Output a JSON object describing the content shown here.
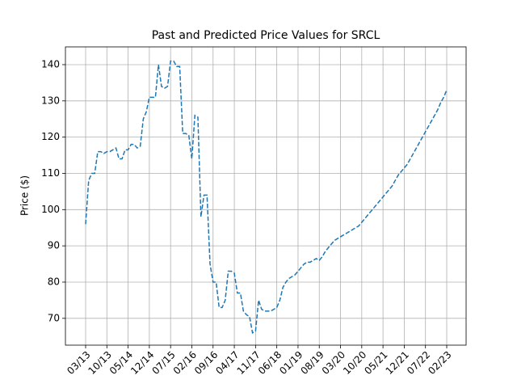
{
  "chart_data": {
    "type": "line",
    "title": "Past and Predicted Price Values for SRCL",
    "y_label": "Price ($)",
    "categories": [
      "03/13",
      null,
      null,
      null,
      null,
      null,
      null,
      "10/13",
      null,
      null,
      null,
      null,
      null,
      null,
      "05/14",
      null,
      null,
      null,
      null,
      null,
      null,
      "12/14",
      null,
      null,
      null,
      null,
      null,
      null,
      "07/15",
      null,
      null,
      null,
      null,
      null,
      null,
      "02/16",
      null,
      null,
      null,
      null,
      null,
      null,
      "09/16",
      null,
      null,
      null,
      null,
      null,
      null,
      "04/17",
      null,
      null,
      null,
      null,
      null,
      null,
      "11/17",
      null,
      null,
      null,
      null,
      null,
      null,
      "06/18",
      null,
      null,
      null,
      null,
      null,
      null,
      "01/19",
      null,
      null,
      null,
      null,
      null,
      null,
      "08/19",
      null,
      null,
      null,
      null,
      null,
      null,
      "03/20",
      null,
      null,
      null,
      null,
      null,
      null,
      "10/20",
      null,
      null,
      null,
      null,
      null,
      null,
      "05/21",
      null,
      null,
      null,
      null,
      null,
      null,
      "12/21",
      null,
      null,
      null,
      null,
      null,
      null,
      "07/22",
      null,
      null,
      null,
      null,
      null,
      null,
      "02/23"
    ],
    "values": [
      96,
      108,
      110,
      110,
      116,
      116,
      115.5,
      116,
      116,
      116.5,
      117,
      114,
      114,
      116.5,
      116.5,
      118,
      118,
      117,
      117.5,
      125,
      127,
      131,
      131,
      131,
      140,
      134,
      133.5,
      134,
      141,
      141,
      139.5,
      139.5,
      121,
      121,
      120.5,
      114,
      126,
      125.5,
      98,
      104,
      104,
      85,
      80,
      80,
      73,
      73,
      75,
      83,
      83,
      82.5,
      77,
      77,
      72,
      71,
      70.5,
      66,
      66.5,
      75,
      72.5,
      72,
      72,
      72,
      72.5,
      73,
      75,
      78.5,
      80,
      81,
      81.5,
      82,
      83,
      84,
      85,
      85.5,
      85.5,
      86,
      86.5,
      86,
      87,
      88.5,
      89.5,
      90.5,
      91.5,
      92,
      92.5,
      93,
      93.5,
      94,
      94.5,
      95,
      95.5,
      96.5,
      97.5,
      98.5,
      99.5,
      100.5,
      101.5,
      102.5,
      103.5,
      104.5,
      105.5,
      106.5,
      108,
      109.5,
      110.5,
      111.5,
      112.5,
      114,
      115.5,
      117,
      118.5,
      120,
      121.5,
      123,
      124.5,
      126,
      127.5,
      129.5,
      131,
      133
    ],
    "color": "#1f77b4",
    "line_style": "dashed",
    "ylim": [
      62.6,
      144.9
    ],
    "yticks": [
      70,
      80,
      90,
      100,
      110,
      120,
      130,
      140
    ],
    "grid": true
  }
}
